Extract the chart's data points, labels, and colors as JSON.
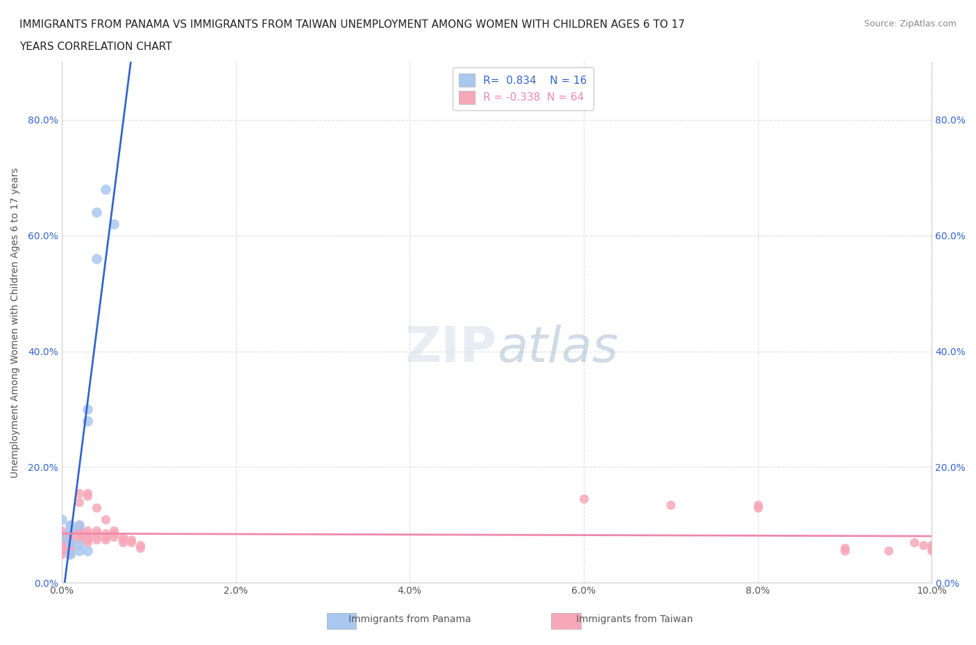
{
  "title_line1": "IMMIGRANTS FROM PANAMA VS IMMIGRANTS FROM TAIWAN UNEMPLOYMENT AMONG WOMEN WITH CHILDREN AGES 6 TO 17",
  "title_line2": "YEARS CORRELATION CHART",
  "source": "Source: ZipAtlas.com",
  "xlabel": "",
  "ylabel": "Unemployment Among Women with Children Ages 6 to 17 years",
  "xlim": [
    0.0,
    0.1
  ],
  "ylim": [
    0.0,
    0.9
  ],
  "yticks": [
    0.0,
    0.2,
    0.4,
    0.6,
    0.8
  ],
  "ytick_labels": [
    "0.0%",
    "20.0%",
    "40.0%",
    "60.0%",
    "80.0%"
  ],
  "xticks": [
    0.0,
    0.02,
    0.04,
    0.06,
    0.08,
    0.1
  ],
  "xtick_labels": [
    "0.0%",
    "2.0%",
    "4.0%",
    "6.0%",
    "8.0%",
    "10.0%"
  ],
  "panama_R": 0.834,
  "panama_N": 16,
  "taiwan_R": -0.338,
  "taiwan_N": 64,
  "panama_color": "#a8c8f0",
  "taiwan_color": "#f7a8b8",
  "panama_line_color": "#3366cc",
  "taiwan_line_color": "#ee88aa",
  "panama_points": [
    [
      0.0,
      0.11
    ],
    [
      0.0,
      0.08
    ],
    [
      0.001,
      0.1
    ],
    [
      0.001,
      0.09
    ],
    [
      0.001,
      0.07
    ],
    [
      0.001,
      0.05
    ],
    [
      0.002,
      0.1
    ],
    [
      0.002,
      0.065
    ],
    [
      0.002,
      0.055
    ],
    [
      0.003,
      0.3
    ],
    [
      0.003,
      0.28
    ],
    [
      0.003,
      0.055
    ],
    [
      0.004,
      0.64
    ],
    [
      0.004,
      0.56
    ],
    [
      0.005,
      0.68
    ],
    [
      0.006,
      0.62
    ]
  ],
  "taiwan_points": [
    [
      0.0,
      0.085
    ],
    [
      0.0,
      0.09
    ],
    [
      0.0,
      0.075
    ],
    [
      0.0,
      0.07
    ],
    [
      0.0,
      0.065
    ],
    [
      0.0,
      0.06
    ],
    [
      0.0,
      0.055
    ],
    [
      0.0,
      0.05
    ],
    [
      0.001,
      0.1
    ],
    [
      0.001,
      0.09
    ],
    [
      0.001,
      0.085
    ],
    [
      0.001,
      0.08
    ],
    [
      0.001,
      0.075
    ],
    [
      0.001,
      0.07
    ],
    [
      0.001,
      0.065
    ],
    [
      0.001,
      0.06
    ],
    [
      0.001,
      0.055
    ],
    [
      0.001,
      0.05
    ],
    [
      0.002,
      0.155
    ],
    [
      0.002,
      0.14
    ],
    [
      0.002,
      0.1
    ],
    [
      0.002,
      0.095
    ],
    [
      0.002,
      0.09
    ],
    [
      0.002,
      0.085
    ],
    [
      0.002,
      0.08
    ],
    [
      0.002,
      0.075
    ],
    [
      0.003,
      0.155
    ],
    [
      0.003,
      0.15
    ],
    [
      0.003,
      0.09
    ],
    [
      0.003,
      0.085
    ],
    [
      0.003,
      0.08
    ],
    [
      0.003,
      0.075
    ],
    [
      0.003,
      0.07
    ],
    [
      0.004,
      0.13
    ],
    [
      0.004,
      0.09
    ],
    [
      0.004,
      0.085
    ],
    [
      0.004,
      0.08
    ],
    [
      0.004,
      0.075
    ],
    [
      0.005,
      0.11
    ],
    [
      0.005,
      0.085
    ],
    [
      0.005,
      0.08
    ],
    [
      0.005,
      0.075
    ],
    [
      0.006,
      0.09
    ],
    [
      0.006,
      0.085
    ],
    [
      0.006,
      0.08
    ],
    [
      0.007,
      0.08
    ],
    [
      0.007,
      0.075
    ],
    [
      0.007,
      0.07
    ],
    [
      0.008,
      0.075
    ],
    [
      0.008,
      0.07
    ],
    [
      0.009,
      0.065
    ],
    [
      0.009,
      0.06
    ],
    [
      0.06,
      0.145
    ],
    [
      0.07,
      0.135
    ],
    [
      0.08,
      0.135
    ],
    [
      0.08,
      0.13
    ],
    [
      0.09,
      0.06
    ],
    [
      0.09,
      0.055
    ],
    [
      0.095,
      0.055
    ],
    [
      0.098,
      0.07
    ],
    [
      0.099,
      0.065
    ],
    [
      0.1,
      0.065
    ],
    [
      0.1,
      0.06
    ],
    [
      0.1,
      0.055
    ]
  ],
  "background_color": "#ffffff",
  "grid_color": "#dddddd",
  "watermark_text": "ZIPatlas",
  "watermark_color_ZIP": "#c8d8e8",
  "watermark_color_atlas": "#88aacc"
}
